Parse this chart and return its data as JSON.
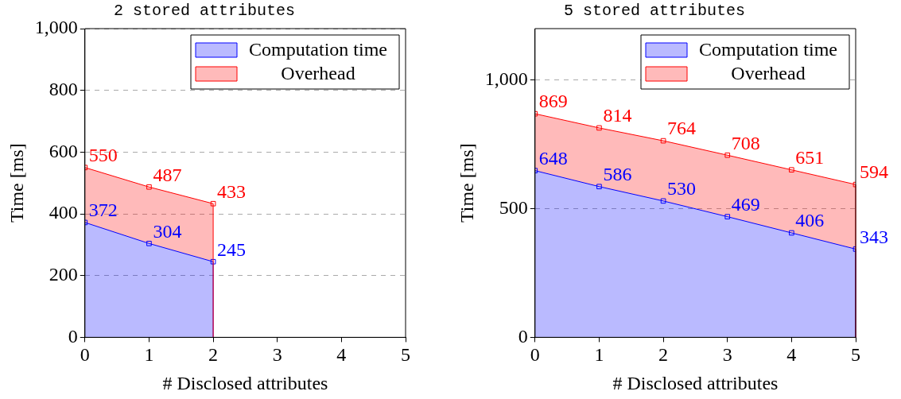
{
  "chart_data": [
    {
      "type": "area",
      "title": "2 stored attributes",
      "xlabel": "# Disclosed attributes",
      "ylabel": "Time [ms]",
      "x": [
        0,
        1,
        2
      ],
      "series": [
        {
          "name": "Computation time",
          "color": "#0000ff",
          "values": [
            372,
            304,
            245
          ]
        },
        {
          "name": "Overhead",
          "color": "#ff0000",
          "values": [
            550,
            487,
            433
          ]
        }
      ],
      "xlim": [
        0,
        5
      ],
      "xticks": [
        0,
        1,
        2,
        3,
        4,
        5
      ],
      "ylim": [
        0,
        1000
      ],
      "yticks": [
        0,
        200,
        400,
        600,
        800,
        {
          "value": 1000,
          "label": "1,000"
        }
      ],
      "grid": "y",
      "legend": "top right",
      "marker": "square",
      "data_labels": true
    },
    {
      "type": "area",
      "title": "5 stored attributes",
      "xlabel": "# Disclosed attributes",
      "ylabel": "Time [ms]",
      "x": [
        0,
        1,
        2,
        3,
        4,
        5
      ],
      "series": [
        {
          "name": "Computation time",
          "color": "#0000ff",
          "values": [
            648,
            586,
            530,
            469,
            406,
            343
          ]
        },
        {
          "name": "Overhead",
          "color": "#ff0000",
          "values": [
            869,
            814,
            764,
            708,
            651,
            594
          ]
        }
      ],
      "xlim": [
        0,
        5
      ],
      "xticks": [
        0,
        1,
        2,
        3,
        4,
        5
      ],
      "ylim": [
        0,
        1200
      ],
      "yticks": [
        0,
        500,
        {
          "value": 1000,
          "label": "1,000"
        }
      ],
      "grid": "y",
      "legend": "top right",
      "marker": "square",
      "data_labels": true
    }
  ]
}
